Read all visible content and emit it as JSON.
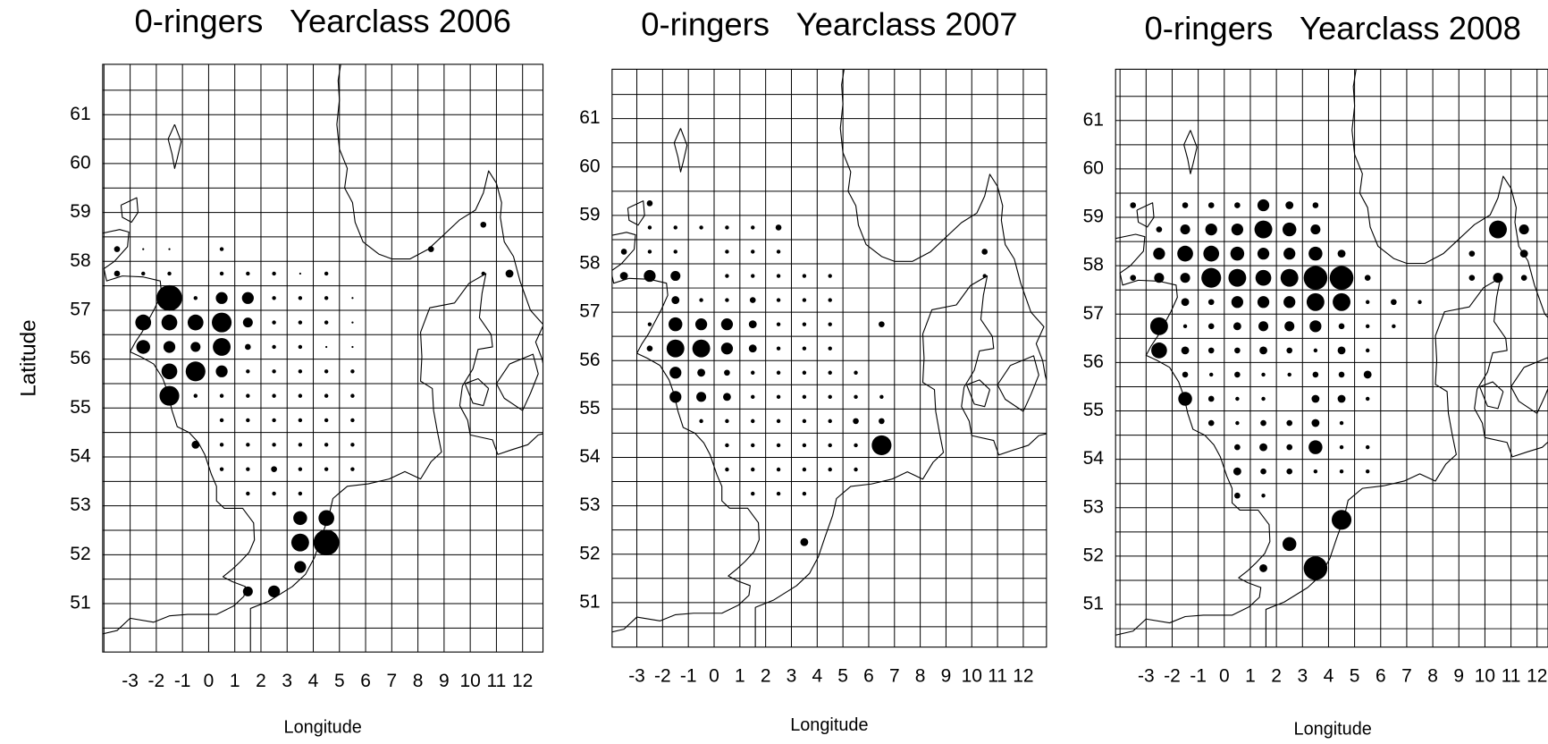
{
  "chart_data": [
    {
      "type": "bubble",
      "title": "0-ringers   Yearclass 2006",
      "x_label": "Longitude",
      "y_label": "Latitude",
      "color": "#000000",
      "grid": true,
      "xlim": [
        -4.05,
        12.78
      ],
      "ylim": [
        50.01,
        62.03
      ],
      "xticks": [
        -3,
        -2,
        -1,
        0,
        1,
        2,
        3,
        4,
        5,
        6,
        7,
        8,
        9,
        10,
        11,
        12
      ],
      "yticks": [
        51,
        52,
        53,
        54,
        55,
        56,
        57,
        58,
        59,
        60,
        61
      ],
      "x": [
        10.5,
        -3.5,
        -2.5,
        -1.5,
        0.5,
        8.5,
        -3.5,
        -2.5,
        -1.5,
        0.5,
        1.5,
        2.5,
        3.5,
        4.5,
        10.5,
        11.5,
        -1.5,
        -0.5,
        0.5,
        1.5,
        2.5,
        3.5,
        4.5,
        5.5,
        -2.5,
        -1.5,
        -0.5,
        0.5,
        1.5,
        2.5,
        3.5,
        4.5,
        5.5,
        -2.5,
        -1.5,
        -0.5,
        0.5,
        1.5,
        2.5,
        3.5,
        4.5,
        5.5,
        -1.5,
        -0.5,
        0.5,
        1.5,
        2.5,
        3.5,
        4.5,
        5.5,
        -1.5,
        -0.5,
        0.5,
        1.5,
        2.5,
        3.5,
        4.5,
        5.5,
        0.5,
        1.5,
        2.5,
        3.5,
        4.5,
        5.5,
        -0.5,
        0.5,
        1.5,
        2.5,
        3.5,
        4.5,
        5.5,
        0.5,
        1.5,
        2.5,
        3.5,
        4.5,
        5.5,
        1.5,
        2.5,
        3.5,
        3.5,
        4.5,
        3.5,
        4.5,
        3.5,
        1.5,
        2.5
      ],
      "y": [
        58.75,
        58.25,
        58.25,
        58.25,
        58.25,
        58.25,
        57.75,
        57.75,
        57.75,
        57.75,
        57.75,
        57.75,
        57.75,
        57.75,
        57.75,
        57.75,
        57.25,
        57.25,
        57.25,
        57.25,
        57.25,
        57.25,
        57.25,
        57.25,
        56.75,
        56.75,
        56.75,
        56.75,
        56.75,
        56.75,
        56.75,
        56.75,
        56.75,
        56.25,
        56.25,
        56.25,
        56.25,
        56.25,
        56.25,
        56.25,
        56.25,
        56.25,
        55.75,
        55.75,
        55.75,
        55.75,
        55.75,
        55.75,
        55.75,
        55.75,
        55.25,
        55.25,
        55.25,
        55.25,
        55.25,
        55.25,
        55.25,
        55.25,
        54.75,
        54.75,
        54.75,
        54.75,
        54.75,
        54.75,
        54.25,
        54.25,
        54.25,
        54.25,
        54.25,
        54.25,
        54.25,
        53.75,
        53.75,
        53.75,
        53.75,
        53.75,
        53.75,
        53.25,
        53.25,
        53.25,
        52.75,
        52.75,
        52.25,
        52.25,
        51.75,
        51.25,
        51.25
      ],
      "sizes": [
        3,
        3,
        1,
        1,
        2,
        3,
        3,
        2,
        2,
        2,
        2,
        2,
        1,
        2,
        2,
        4,
        13,
        2,
        6,
        6,
        2,
        2,
        2,
        1,
        8,
        8,
        8,
        10,
        5,
        2,
        2,
        2,
        1,
        7,
        6,
        5,
        9,
        3,
        2,
        2,
        1,
        1,
        8,
        10,
        6,
        2,
        2,
        2,
        2,
        2,
        10,
        2,
        2,
        2,
        2,
        2,
        2,
        2,
        2,
        2,
        2,
        2,
        2,
        2,
        4,
        2,
        2,
        2,
        2,
        2,
        2,
        2,
        2,
        3,
        2,
        2,
        2,
        2,
        2,
        2,
        7,
        8,
        9,
        13,
        6,
        5,
        6
      ]
    },
    {
      "type": "bubble",
      "title": "0-ringers   Yearclass 2007",
      "x_label": "Longitude",
      "color": "#000000",
      "grid": true,
      "xlim": [
        -3.96,
        12.9
      ],
      "ylim": [
        50.08,
        62.02
      ],
      "xticks": [
        -3,
        -2,
        -1,
        0,
        1,
        2,
        3,
        4,
        5,
        6,
        7,
        8,
        9,
        10,
        11,
        12
      ],
      "yticks": [
        51,
        52,
        53,
        54,
        55,
        56,
        57,
        58,
        59,
        60,
        61
      ],
      "x": [
        -2.5,
        -2.5,
        -1.5,
        -0.5,
        0.5,
        1.5,
        2.5,
        -3.5,
        -2.5,
        -1.5,
        0.5,
        1.5,
        2.5,
        10.5,
        -3.5,
        -2.5,
        -1.5,
        0.5,
        1.5,
        2.5,
        3.5,
        4.5,
        10.5,
        -1.5,
        -0.5,
        0.5,
        1.5,
        2.5,
        3.5,
        4.5,
        -2.5,
        -1.5,
        -0.5,
        0.5,
        1.5,
        2.5,
        3.5,
        4.5,
        6.5,
        -2.5,
        -1.5,
        -0.5,
        0.5,
        1.5,
        2.5,
        3.5,
        4.5,
        -1.5,
        -0.5,
        0.5,
        1.5,
        2.5,
        3.5,
        4.5,
        5.5,
        -1.5,
        -0.5,
        0.5,
        1.5,
        2.5,
        3.5,
        4.5,
        5.5,
        6.5,
        -0.5,
        0.5,
        1.5,
        2.5,
        3.5,
        4.5,
        5.5,
        6.5,
        0.5,
        1.5,
        2.5,
        3.5,
        4.5,
        5.5,
        6.5,
        0.5,
        1.5,
        2.5,
        3.5,
        4.5,
        5.5,
        1.5,
        2.5,
        3.5,
        3.5
      ],
      "y": [
        59.25,
        58.75,
        58.75,
        58.75,
        58.75,
        58.75,
        58.75,
        58.25,
        58.25,
        58.25,
        58.25,
        58.25,
        58.25,
        58.25,
        57.75,
        57.75,
        57.75,
        57.75,
        57.75,
        57.75,
        57.75,
        57.75,
        57.75,
        57.25,
        57.25,
        57.25,
        57.25,
        57.25,
        57.25,
        57.25,
        56.75,
        56.75,
        56.75,
        56.75,
        56.75,
        56.75,
        56.75,
        56.75,
        56.75,
        56.25,
        56.25,
        56.25,
        56.25,
        56.25,
        56.25,
        56.25,
        56.25,
        55.75,
        55.75,
        55.75,
        55.75,
        55.75,
        55.75,
        55.75,
        55.75,
        55.25,
        55.25,
        55.25,
        55.25,
        55.25,
        55.25,
        55.25,
        55.25,
        55.25,
        54.75,
        54.75,
        54.75,
        54.75,
        54.75,
        54.75,
        54.75,
        54.75,
        54.25,
        54.25,
        54.25,
        54.25,
        54.25,
        54.25,
        54.25,
        53.75,
        53.75,
        53.75,
        53.75,
        53.75,
        53.75,
        53.25,
        53.25,
        53.25,
        52.25
      ],
      "sizes": [
        3,
        2,
        2,
        2,
        2,
        2,
        3,
        3,
        2,
        2,
        2,
        2,
        2,
        3,
        4,
        6,
        5,
        2,
        2,
        2,
        2,
        2,
        2,
        4,
        2,
        2,
        3,
        2,
        2,
        2,
        2,
        7,
        6,
        6,
        4,
        2,
        2,
        2,
        3,
        3,
        9,
        9,
        6,
        4,
        2,
        2,
        2,
        6,
        4,
        3,
        2,
        2,
        2,
        2,
        2,
        6,
        5,
        4,
        2,
        2,
        2,
        2,
        2,
        2,
        2,
        2,
        2,
        2,
        2,
        2,
        3,
        3,
        2,
        2,
        2,
        2,
        2,
        2,
        10,
        2,
        2,
        2,
        2,
        2,
        2,
        2,
        2,
        2,
        4
      ]
    },
    {
      "type": "bubble",
      "title": "0-ringers   Yearclass 2008",
      "x_label": "Longitude",
      "color": "#000000",
      "grid": true,
      "xlim": [
        -4.17,
        12.42
      ],
      "ylim": [
        50.12,
        62.06
      ],
      "xticks": [
        -3,
        -2,
        -1,
        0,
        1,
        2,
        3,
        4,
        5,
        6,
        7,
        8,
        9,
        10,
        11,
        12
      ],
      "yticks": [
        51,
        52,
        53,
        54,
        55,
        56,
        57,
        58,
        59,
        60,
        61
      ],
      "x": [
        -3.5,
        -1.5,
        -0.5,
        0.5,
        1.5,
        2.5,
        3.5,
        -2.5,
        -1.5,
        -0.5,
        0.5,
        1.5,
        2.5,
        3.5,
        10.5,
        11.5,
        -2.5,
        -1.5,
        -0.5,
        0.5,
        1.5,
        2.5,
        3.5,
        4.5,
        9.5,
        11.5,
        -3.5,
        -2.5,
        -1.5,
        -0.5,
        0.5,
        1.5,
        2.5,
        3.5,
        4.5,
        5.5,
        9.5,
        10.5,
        11.5,
        -1.5,
        -0.5,
        0.5,
        1.5,
        2.5,
        3.5,
        4.5,
        5.5,
        6.5,
        7.5,
        -2.5,
        -1.5,
        -0.5,
        0.5,
        1.5,
        2.5,
        3.5,
        4.5,
        5.5,
        6.5,
        -2.5,
        -1.5,
        -0.5,
        0.5,
        1.5,
        2.5,
        3.5,
        4.5,
        5.5,
        -1.5,
        -0.5,
        0.5,
        1.5,
        2.5,
        3.5,
        4.5,
        5.5,
        -1.5,
        -0.5,
        0.5,
        1.5,
        3.5,
        4.5,
        5.5,
        -0.5,
        0.5,
        1.5,
        2.5,
        3.5,
        4.5,
        0.5,
        1.5,
        2.5,
        3.5,
        4.5,
        5.5,
        0.5,
        1.5,
        2.5,
        3.5,
        4.5,
        5.5,
        0.5,
        1.5,
        4.5,
        2.5,
        1.5,
        3.5
      ],
      "y": [
        59.25,
        59.25,
        59.25,
        59.25,
        59.25,
        59.25,
        59.25,
        58.75,
        58.75,
        58.75,
        58.75,
        58.75,
        58.75,
        58.75,
        58.75,
        58.75,
        58.25,
        58.25,
        58.25,
        58.25,
        58.25,
        58.25,
        58.25,
        58.25,
        58.25,
        58.25,
        57.75,
        57.75,
        57.75,
        57.75,
        57.75,
        57.75,
        57.75,
        57.75,
        57.75,
        57.75,
        57.75,
        57.75,
        57.75,
        57.25,
        57.25,
        57.25,
        57.25,
        57.25,
        57.25,
        57.25,
        57.25,
        57.25,
        57.25,
        56.75,
        56.75,
        56.75,
        56.75,
        56.75,
        56.75,
        56.75,
        56.75,
        56.75,
        56.75,
        56.25,
        56.25,
        56.25,
        56.25,
        56.25,
        56.25,
        56.25,
        56.25,
        56.25,
        55.75,
        55.75,
        55.75,
        55.75,
        55.75,
        55.75,
        55.75,
        55.75,
        55.25,
        55.25,
        55.25,
        55.25,
        55.25,
        55.25,
        55.25,
        54.75,
        54.75,
        54.75,
        54.75,
        54.75,
        54.75,
        54.25,
        54.25,
        54.25,
        54.25,
        54.25,
        54.25,
        53.75,
        53.75,
        53.75,
        53.75,
        53.75,
        53.75,
        53.25,
        53.25,
        52.75,
        52.25,
        51.75,
        51.75
      ],
      "sizes": [
        3,
        3,
        3,
        3,
        6,
        4,
        3,
        3,
        5,
        6,
        6,
        9,
        7,
        5,
        9,
        5,
        6,
        8,
        8,
        7,
        6,
        6,
        7,
        4,
        3,
        4,
        3,
        5,
        5,
        10,
        9,
        8,
        9,
        12,
        12,
        3,
        3,
        5,
        3,
        4,
        3,
        6,
        6,
        6,
        9,
        9,
        2,
        3,
        2,
        9,
        2,
        3,
        4,
        5,
        5,
        6,
        3,
        2,
        2,
        8,
        4,
        3,
        3,
        4,
        3,
        2,
        4,
        2,
        3,
        2,
        3,
        2,
        2,
        3,
        3,
        4,
        7,
        3,
        2,
        2,
        4,
        4,
        2,
        3,
        2,
        3,
        3,
        4,
        2,
        3,
        4,
        3,
        7,
        2,
        2,
        4,
        3,
        3,
        2,
        2,
        2,
        3,
        2,
        10,
        7,
        4,
        12
      ]
    }
  ]
}
